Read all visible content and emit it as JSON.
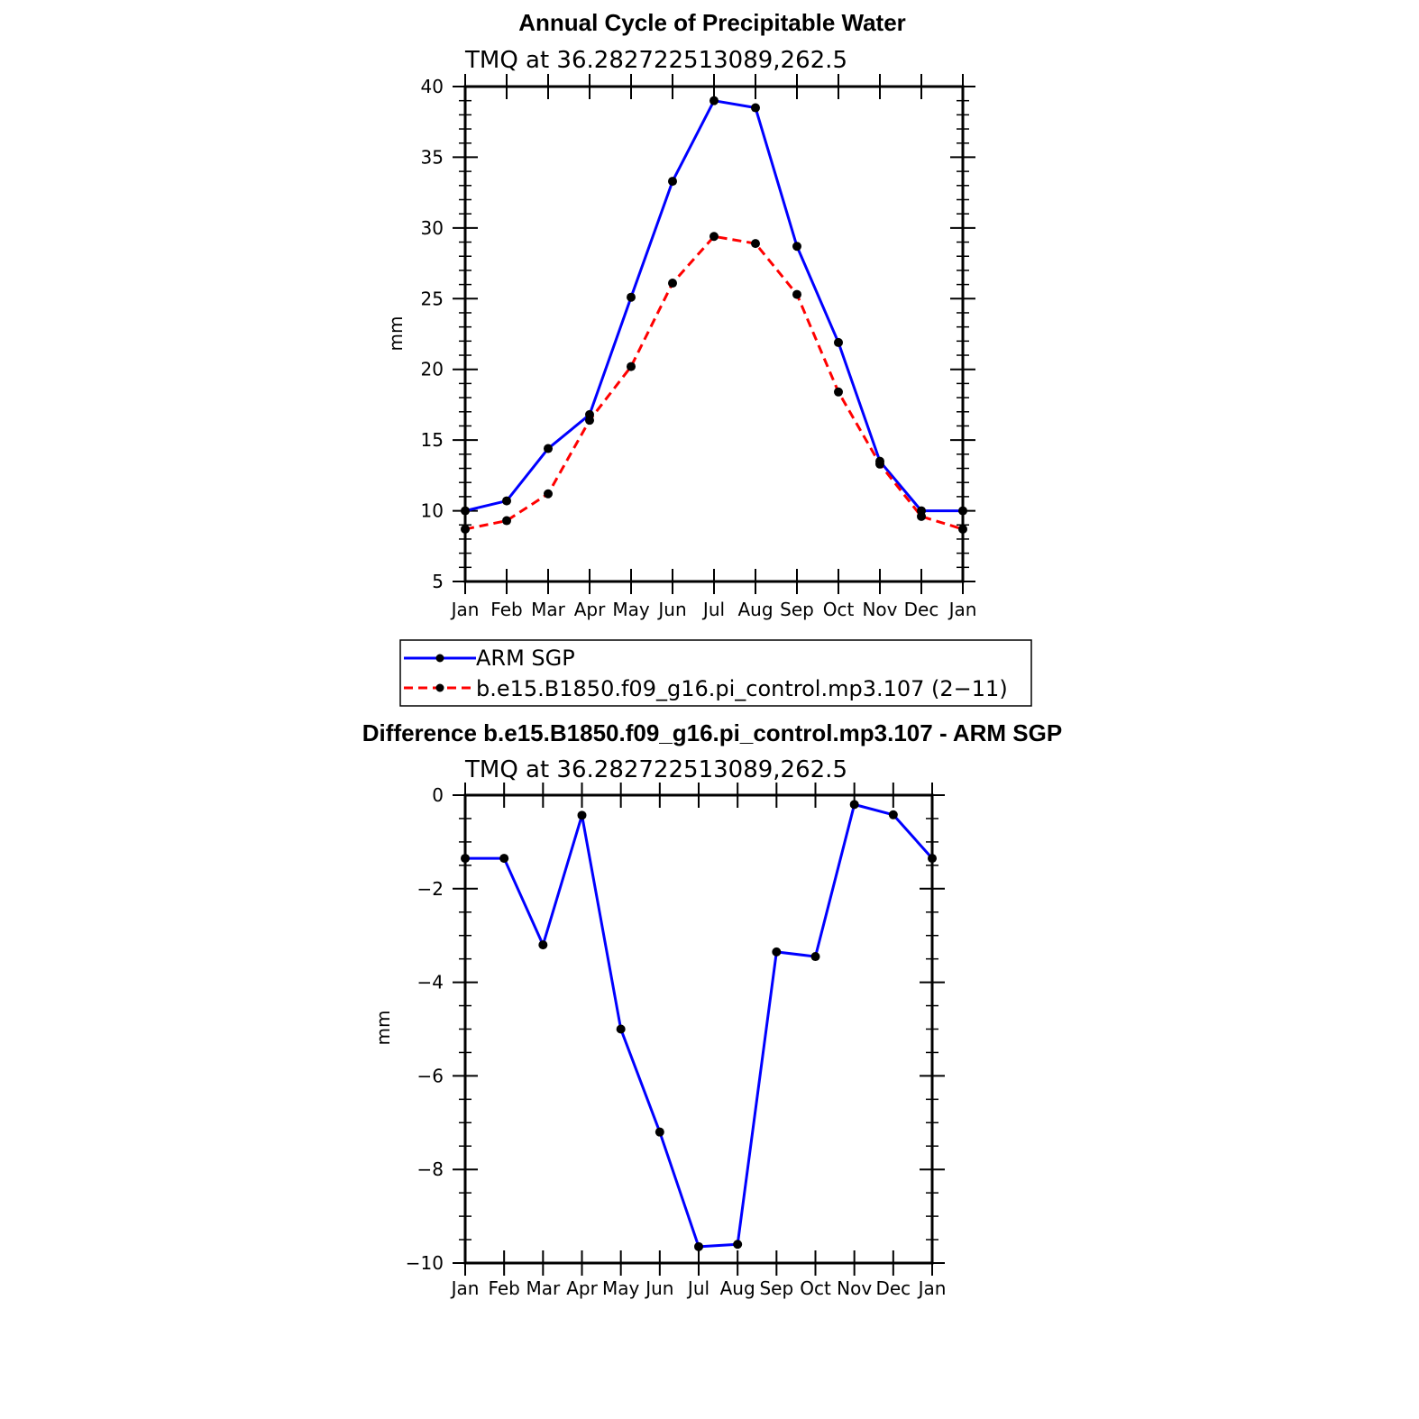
{
  "chart_data": [
    {
      "type": "line",
      "title": "Annual Cycle of Precipitable Water",
      "subtitle": "TMQ  at  36.282722513089,262.5",
      "xlabel": "",
      "ylabel": "mm",
      "categories": [
        "Jan",
        "Feb",
        "Mar",
        "Apr",
        "May",
        "Jun",
        "Jul",
        "Aug",
        "Sep",
        "Oct",
        "Nov",
        "Dec",
        "Jan"
      ],
      "ylim": [
        5,
        40
      ],
      "yticks": [
        5,
        10,
        15,
        20,
        25,
        30,
        35,
        40
      ],
      "series": [
        {
          "name": "ARM SGP",
          "color": "#0000ff",
          "style": "solid",
          "values": [
            10.0,
            10.7,
            14.4,
            16.8,
            25.1,
            33.3,
            39.0,
            38.5,
            28.7,
            21.9,
            13.5,
            10.0,
            10.0
          ]
        },
        {
          "name": "b.e15.B1850.f09_g16.pi_control.mp3.107 (2−11)",
          "color": "#ff0000",
          "style": "dashed",
          "values": [
            8.7,
            9.3,
            11.2,
            16.4,
            20.2,
            26.1,
            29.4,
            28.9,
            25.3,
            18.4,
            13.3,
            9.6,
            8.7
          ]
        }
      ]
    },
    {
      "type": "line",
      "title": "Difference b.e15.B1850.f09_g16.pi_control.mp3.107 - ARM SGP",
      "subtitle": "TMQ  at  36.282722513089,262.5",
      "xlabel": "",
      "ylabel": "mm",
      "categories": [
        "Jan",
        "Feb",
        "Mar",
        "Apr",
        "May",
        "Jun",
        "Jul",
        "Aug",
        "Sep",
        "Oct",
        "Nov",
        "Dec",
        "Jan"
      ],
      "ylim": [
        -10,
        0
      ],
      "yticks": [
        -10,
        -8,
        -6,
        -4,
        -2,
        0
      ],
      "series": [
        {
          "name": "Difference",
          "color": "#0000ff",
          "style": "solid",
          "values": [
            -1.35,
            -1.35,
            -3.2,
            -0.43,
            -5.0,
            -7.2,
            -9.65,
            -9.6,
            -3.35,
            -3.45,
            -0.2,
            -0.42,
            -1.35
          ]
        }
      ]
    }
  ]
}
